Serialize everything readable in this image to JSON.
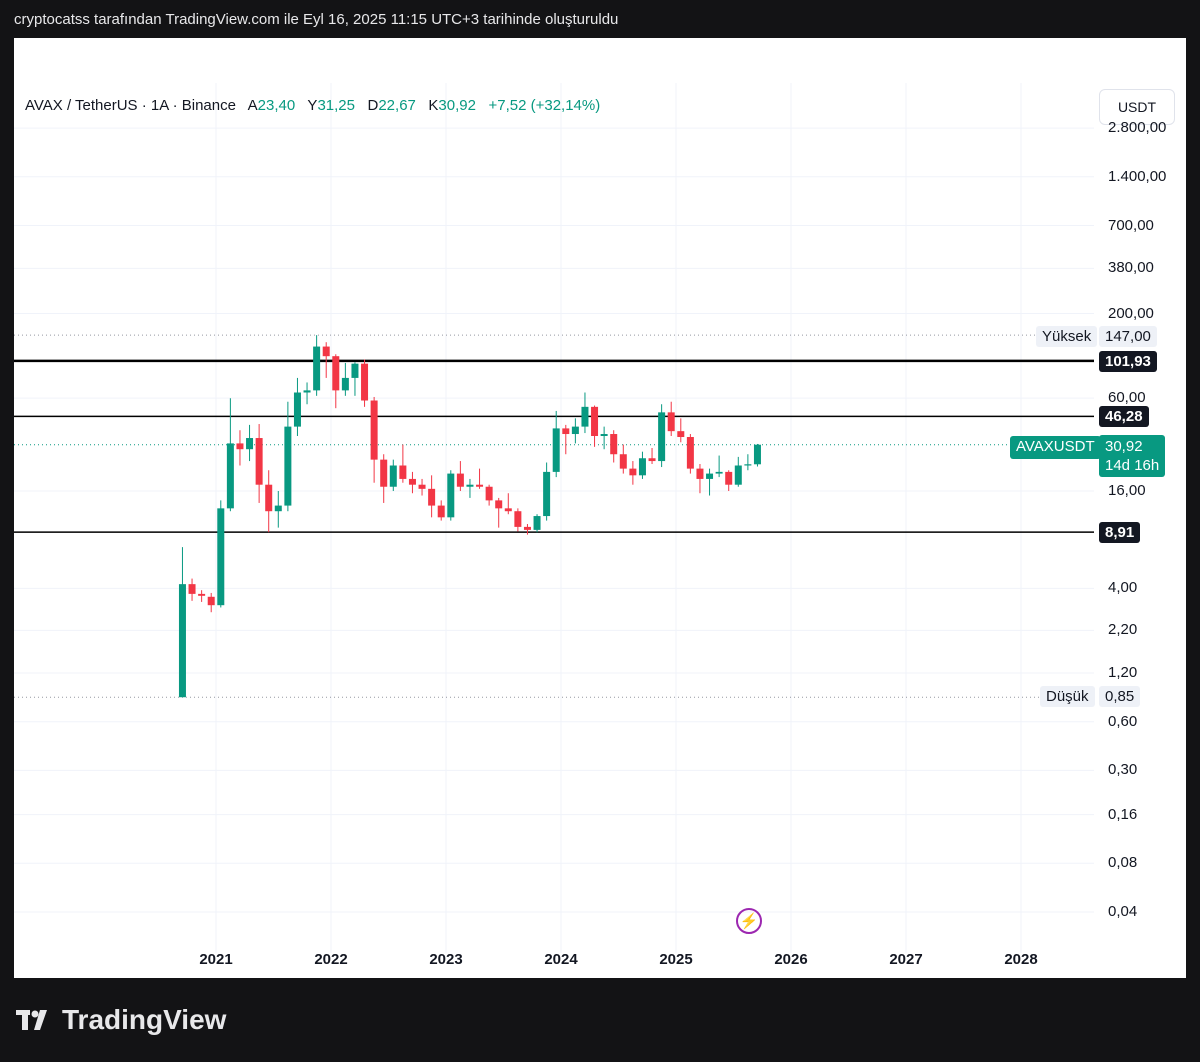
{
  "caption": "cryptocatss tarafından TradingView.com ile Eyl 16, 2025 11:15 UTC+3 tarihinde oluşturuldu",
  "brand": "TradingView",
  "currency_button": "USDT",
  "legend": {
    "symbol": "AVAX / TetherUS · 1A · Binance",
    "open_label": "A",
    "open": "23,40",
    "high_label": "Y",
    "high": "31,25",
    "low_label": "D",
    "low": "22,67",
    "close_label": "K",
    "close": "30,92",
    "change": "+7,52 (+32,14%)"
  },
  "price_tags": {
    "high_label": "Yüksek",
    "high_value": "147,00",
    "level_1": "101,93",
    "level_2": "46,28",
    "level_3": "8,91",
    "symbol": "AVAXUSDT",
    "last": "30,92",
    "countdown": "14d 16h",
    "low_label": "Düşük",
    "low_value": "0,85"
  },
  "colors": {
    "up": "#089981",
    "down": "#f23645",
    "accent": "#089981",
    "level": "#000000"
  },
  "icons": {
    "flash": "lightning-icon"
  },
  "chart_data": {
    "type": "candlestick",
    "scale": "log",
    "interval": "1 month",
    "y_ticks": [
      "2.800,00",
      "1.400,00",
      "700,00",
      "380,00",
      "200,00",
      "60,00",
      "16,00",
      "4,00",
      "2,20",
      "1,20",
      "0,60",
      "0,30",
      "0,16",
      "0,08",
      "0,04"
    ],
    "x_ticks": [
      "2021",
      "2022",
      "2023",
      "2024",
      "2025",
      "2026",
      "2027",
      "2028"
    ],
    "horizontal_levels": [
      101.93,
      46.28,
      8.91
    ],
    "dotted_levels": [
      147,
      30.92,
      0.85
    ],
    "candles": [
      {
        "d": "2020-09",
        "o": 0.85,
        "h": 7.2,
        "l": 0.85,
        "c": 4.25
      },
      {
        "d": "2020-10",
        "o": 4.25,
        "h": 4.6,
        "l": 3.35,
        "c": 3.7
      },
      {
        "d": "2020-11",
        "o": 3.7,
        "h": 3.9,
        "l": 3.3,
        "c": 3.6
      },
      {
        "d": "2020-12",
        "o": 3.55,
        "h": 3.75,
        "l": 2.85,
        "c": 3.15
      },
      {
        "d": "2021-01",
        "o": 3.15,
        "h": 14.0,
        "l": 3.05,
        "c": 12.5
      },
      {
        "d": "2021-02",
        "o": 12.5,
        "h": 59.9,
        "l": 12.0,
        "c": 31.5
      },
      {
        "d": "2021-03",
        "o": 31.5,
        "h": 38.0,
        "l": 23.0,
        "c": 29.0
      },
      {
        "d": "2021-04",
        "o": 29.0,
        "h": 41.0,
        "l": 24.5,
        "c": 34.0
      },
      {
        "d": "2021-05",
        "o": 34.0,
        "h": 41.5,
        "l": 13.5,
        "c": 17.5
      },
      {
        "d": "2021-06",
        "o": 17.5,
        "h": 21.5,
        "l": 8.9,
        "c": 12.0
      },
      {
        "d": "2021-07",
        "o": 12.0,
        "h": 16.0,
        "l": 9.5,
        "c": 13.0
      },
      {
        "d": "2021-08",
        "o": 13.0,
        "h": 57.0,
        "l": 12.0,
        "c": 40.0
      },
      {
        "d": "2021-09",
        "o": 40.0,
        "h": 80.0,
        "l": 35.0,
        "c": 65.0
      },
      {
        "d": "2021-10",
        "o": 65.0,
        "h": 75.0,
        "l": 55.0,
        "c": 67.0
      },
      {
        "d": "2021-11",
        "o": 67.0,
        "h": 147.0,
        "l": 62.0,
        "c": 125.0
      },
      {
        "d": "2021-12",
        "o": 125.0,
        "h": 133.0,
        "l": 80.0,
        "c": 109.0
      },
      {
        "d": "2022-01",
        "o": 109.0,
        "h": 112.0,
        "l": 52.0,
        "c": 67.0
      },
      {
        "d": "2022-02",
        "o": 67.0,
        "h": 99.0,
        "l": 62.0,
        "c": 80.0
      },
      {
        "d": "2022-03",
        "o": 80.0,
        "h": 100.0,
        "l": 62.0,
        "c": 98.0
      },
      {
        "d": "2022-04",
        "o": 98.0,
        "h": 104.0,
        "l": 53.0,
        "c": 58.0
      },
      {
        "d": "2022-05",
        "o": 58.0,
        "h": 61.0,
        "l": 18.0,
        "c": 25.0
      },
      {
        "d": "2022-06",
        "o": 25.0,
        "h": 27.0,
        "l": 13.5,
        "c": 17.0
      },
      {
        "d": "2022-07",
        "o": 17.0,
        "h": 25.0,
        "l": 16.0,
        "c": 23.0
      },
      {
        "d": "2022-08",
        "o": 23.0,
        "h": 31.0,
        "l": 18.0,
        "c": 19.0
      },
      {
        "d": "2022-09",
        "o": 19.0,
        "h": 21.0,
        "l": 15.5,
        "c": 17.5
      },
      {
        "d": "2022-10",
        "o": 17.5,
        "h": 19.0,
        "l": 15.0,
        "c": 16.5
      },
      {
        "d": "2022-11",
        "o": 16.5,
        "h": 20.0,
        "l": 11.0,
        "c": 13.0
      },
      {
        "d": "2022-12",
        "o": 13.0,
        "h": 14.0,
        "l": 10.5,
        "c": 11.0
      },
      {
        "d": "2023-01",
        "o": 11.0,
        "h": 21.5,
        "l": 10.5,
        "c": 20.5
      },
      {
        "d": "2023-02",
        "o": 20.5,
        "h": 24.5,
        "l": 16.0,
        "c": 17.0
      },
      {
        "d": "2023-03",
        "o": 17.0,
        "h": 19.0,
        "l": 14.5,
        "c": 17.5
      },
      {
        "d": "2023-04",
        "o": 17.5,
        "h": 22.0,
        "l": 16.5,
        "c": 17.0
      },
      {
        "d": "2023-05",
        "o": 17.0,
        "h": 17.5,
        "l": 13.0,
        "c": 14.0
      },
      {
        "d": "2023-06",
        "o": 14.0,
        "h": 14.5,
        "l": 9.5,
        "c": 12.5
      },
      {
        "d": "2023-07",
        "o": 12.5,
        "h": 15.5,
        "l": 11.5,
        "c": 12.0
      },
      {
        "d": "2023-08",
        "o": 12.0,
        "h": 12.5,
        "l": 9.0,
        "c": 9.6
      },
      {
        "d": "2023-09",
        "o": 9.6,
        "h": 10.0,
        "l": 8.6,
        "c": 9.2
      },
      {
        "d": "2023-10",
        "o": 9.2,
        "h": 11.5,
        "l": 8.9,
        "c": 11.2
      },
      {
        "d": "2023-11",
        "o": 11.2,
        "h": 24.0,
        "l": 10.5,
        "c": 21.0
      },
      {
        "d": "2023-12",
        "o": 21.0,
        "h": 50.0,
        "l": 19.5,
        "c": 39.0
      },
      {
        "d": "2024-01",
        "o": 39.0,
        "h": 41.0,
        "l": 27.0,
        "c": 36.0
      },
      {
        "d": "2024-02",
        "o": 36.0,
        "h": 45.0,
        "l": 31.5,
        "c": 40.0
      },
      {
        "d": "2024-03",
        "o": 40.0,
        "h": 65.0,
        "l": 36.5,
        "c": 53.0
      },
      {
        "d": "2024-04",
        "o": 53.0,
        "h": 54.0,
        "l": 30.0,
        "c": 35.0
      },
      {
        "d": "2024-05",
        "o": 35.0,
        "h": 40.0,
        "l": 29.0,
        "c": 36.0
      },
      {
        "d": "2024-06",
        "o": 36.0,
        "h": 38.0,
        "l": 24.0,
        "c": 27.0
      },
      {
        "d": "2024-07",
        "o": 27.0,
        "h": 31.0,
        "l": 20.5,
        "c": 22.0
      },
      {
        "d": "2024-08",
        "o": 22.0,
        "h": 24.5,
        "l": 17.5,
        "c": 20.0
      },
      {
        "d": "2024-09",
        "o": 20.0,
        "h": 28.0,
        "l": 19.0,
        "c": 25.5
      },
      {
        "d": "2024-10",
        "o": 25.5,
        "h": 29.5,
        "l": 23.5,
        "c": 24.5
      },
      {
        "d": "2024-11",
        "o": 24.5,
        "h": 55.0,
        "l": 22.5,
        "c": 49.0
      },
      {
        "d": "2024-12",
        "o": 49.0,
        "h": 57.0,
        "l": 35.0,
        "c": 37.5
      },
      {
        "d": "2025-01",
        "o": 37.5,
        "h": 45.0,
        "l": 32.0,
        "c": 34.5
      },
      {
        "d": "2025-02",
        "o": 34.5,
        "h": 36.0,
        "l": 20.5,
        "c": 22.0
      },
      {
        "d": "2025-03",
        "o": 22.0,
        "h": 23.5,
        "l": 15.5,
        "c": 19.0
      },
      {
        "d": "2025-04",
        "o": 19.0,
        "h": 22.0,
        "l": 15.0,
        "c": 20.5
      },
      {
        "d": "2025-05",
        "o": 20.5,
        "h": 26.5,
        "l": 19.5,
        "c": 21.0
      },
      {
        "d": "2025-06",
        "o": 21.0,
        "h": 21.5,
        "l": 16.0,
        "c": 17.5
      },
      {
        "d": "2025-07",
        "o": 17.5,
        "h": 26.0,
        "l": 17.0,
        "c": 23.0
      },
      {
        "d": "2025-08",
        "o": 23.0,
        "h": 27.0,
        "l": 21.5,
        "c": 23.4
      },
      {
        "d": "2025-09",
        "o": 23.4,
        "h": 31.25,
        "l": 22.67,
        "c": 30.92
      }
    ]
  }
}
